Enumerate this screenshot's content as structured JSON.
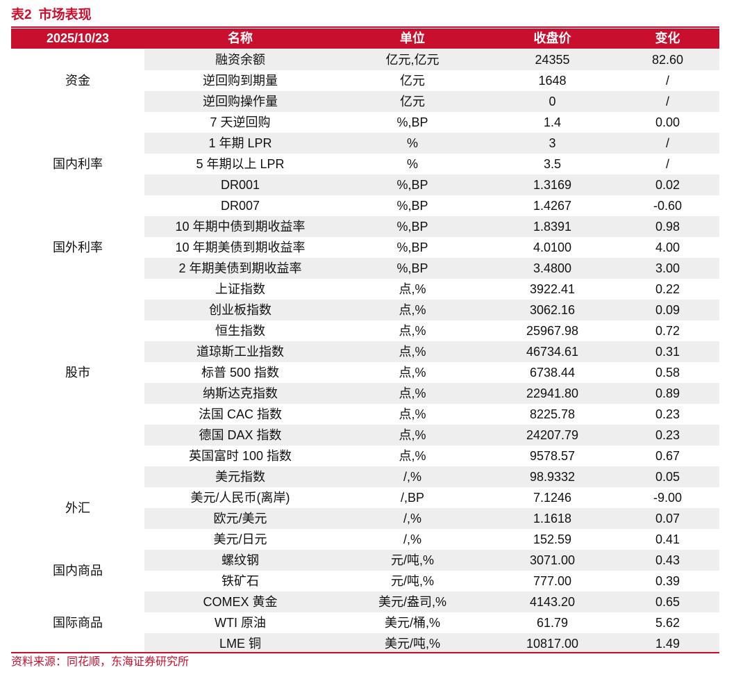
{
  "title": {
    "number": "表2",
    "text": "市场表现"
  },
  "header": {
    "date": "2025/10/23",
    "name": "名称",
    "unit": "单位",
    "close": "收盘价",
    "change": "变化"
  },
  "categories": [
    {
      "label": "资金",
      "start": 0,
      "span": 3
    },
    {
      "label": "国内利率",
      "start": 3,
      "span": 5
    },
    {
      "label": "国外利率",
      "start": 8,
      "span": 3
    },
    {
      "label": "股市",
      "start": 11,
      "span": 9
    },
    {
      "label": "外汇",
      "start": 20,
      "span": 4
    },
    {
      "label": "国内商品",
      "start": 24,
      "span": 2
    },
    {
      "label": "国际商品",
      "start": 26,
      "span": 3
    }
  ],
  "rows": [
    {
      "name": "融资余额",
      "unit": "亿元,亿元",
      "close": "24355",
      "change": "82.60"
    },
    {
      "name": "逆回购到期量",
      "unit": "亿元",
      "close": "1648",
      "change": "/"
    },
    {
      "name": "逆回购操作量",
      "unit": "亿元",
      "close": "0",
      "change": "/"
    },
    {
      "name": "7 天逆回购",
      "unit": "%,BP",
      "close": "1.4",
      "change": "0.00"
    },
    {
      "name": "1 年期 LPR",
      "unit": "%",
      "close": "3",
      "change": "/"
    },
    {
      "name": "5 年期以上 LPR",
      "unit": "%",
      "close": "3.5",
      "change": "/"
    },
    {
      "name": "DR001",
      "unit": "%,BP",
      "close": "1.3169",
      "change": "0.02"
    },
    {
      "name": "DR007",
      "unit": "%,BP",
      "close": "1.4267",
      "change": "-0.60"
    },
    {
      "name": "10 年期中债到期收益率",
      "unit": "%,BP",
      "close": "1.8391",
      "change": "0.98"
    },
    {
      "name": "10 年期美债到期收益率",
      "unit": "%,BP",
      "close": "4.0100",
      "change": "4.00"
    },
    {
      "name": "2 年期美债到期收益率",
      "unit": "%,BP",
      "close": "3.4800",
      "change": "3.00"
    },
    {
      "name": "上证指数",
      "unit": "点,%",
      "close": "3922.41",
      "change": "0.22"
    },
    {
      "name": "创业板指数",
      "unit": "点,%",
      "close": "3062.16",
      "change": "0.09"
    },
    {
      "name": "恒生指数",
      "unit": "点,%",
      "close": "25967.98",
      "change": "0.72"
    },
    {
      "name": "道琼斯工业指数",
      "unit": "点,%",
      "close": "46734.61",
      "change": "0.31"
    },
    {
      "name": "标普 500 指数",
      "unit": "点,%",
      "close": "6738.44",
      "change": "0.58"
    },
    {
      "name": "纳斯达克指数",
      "unit": "点,%",
      "close": "22941.80",
      "change": "0.89"
    },
    {
      "name": "法国 CAC 指数",
      "unit": "点,%",
      "close": "8225.78",
      "change": "0.23"
    },
    {
      "name": "德国 DAX 指数",
      "unit": "点,%",
      "close": "24207.79",
      "change": "0.23"
    },
    {
      "name": "英国富时 100 指数",
      "unit": "点,%",
      "close": "9578.57",
      "change": "0.67"
    },
    {
      "name": "美元指数",
      "unit": "/,%",
      "close": "98.9332",
      "change": "0.05"
    },
    {
      "name": "美元/人民币(离岸)",
      "unit": "/,BP",
      "close": "7.1246",
      "change": "-9.00"
    },
    {
      "name": "欧元/美元",
      "unit": "/,%",
      "close": "1.1618",
      "change": "0.07"
    },
    {
      "name": "美元/日元",
      "unit": "/,%",
      "close": "152.59",
      "change": "0.41"
    },
    {
      "name": "螺纹钢",
      "unit": "元/吨,%",
      "close": "3071.00",
      "change": "0.43"
    },
    {
      "name": "铁矿石",
      "unit": "元/吨,%",
      "close": "777.00",
      "change": "0.39"
    },
    {
      "name": "COMEX 黄金",
      "unit": "美元/盎司,%",
      "close": "4143.20",
      "change": "0.65"
    },
    {
      "name": "WTI 原油",
      "unit": "美元/桶,%",
      "close": "61.79",
      "change": "5.62"
    },
    {
      "name": "LME 铜",
      "unit": "美元/吨,%",
      "close": "10817.00",
      "change": "1.49"
    }
  ],
  "source": "资料来源：同花顺，东海证券研究所",
  "colors": {
    "accent": "#c8102e",
    "row_shade": "#eeeeee"
  }
}
